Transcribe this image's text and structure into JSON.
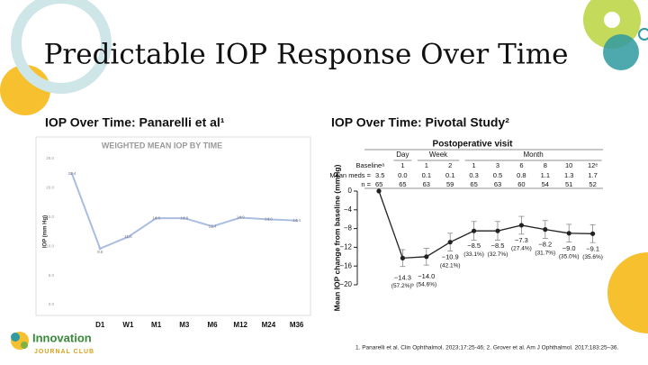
{
  "title": "Predictable IOP Response Over Time",
  "footnote": "1. Panarelli et al. Clin Ophthalmol. 2023;17:25-46; 2. Grover et al. Am J Ophthalmol. 2017;183:25–36.",
  "logo": {
    "name": "Innovation",
    "tagline": "JOURNAL CLUB"
  },
  "chart_data": [
    {
      "type": "line",
      "heading": "IOP Over Time: Panarelli et al¹",
      "title": "WEIGHTED MEAN IOP BY TIME",
      "y_label": "IOP (mm Hg)",
      "categories": [
        null,
        "D1",
        "W1",
        "M1",
        "M3",
        "M6",
        "M12",
        "M24",
        "M36"
      ],
      "values": [
        22.4,
        9.6,
        11.6,
        14.8,
        14.8,
        13.4,
        14.9,
        14.6,
        14.4
      ],
      "color": "#a9bde3",
      "ylim": [
        0,
        25
      ],
      "yticks": [
        {
          "value": 0,
          "label": "0.0"
        },
        {
          "value": 5,
          "label": "5.0"
        },
        {
          "value": 10,
          "label": "10.0"
        },
        {
          "value": 15,
          "label": "15.0"
        },
        {
          "value": 20,
          "label": "20.0"
        },
        {
          "value": 25,
          "label": "25.0"
        }
      ]
    },
    {
      "type": "line",
      "heading": "IOP Over Time: Pivotal Study²",
      "title": "Postoperative visit",
      "y_label": "Mean IOP change from baseline (mmHg)",
      "x_groups": [
        "Day",
        "Week",
        "Month"
      ],
      "categories": [
        "Baselineᵃ",
        "1",
        "1",
        "2",
        "1",
        "3",
        "6",
        "8",
        "10",
        "12ᵉ"
      ],
      "table_rows": [
        {
          "label": "Mean meds =",
          "values": [
            "3.5",
            "0.0",
            "0.1",
            "0.1",
            "0.3",
            "0.5",
            "0.8",
            "1.1",
            "1.3",
            "1.7"
          ]
        },
        {
          "label": "n =",
          "values": [
            65,
            65,
            63,
            59,
            65,
            63,
            60,
            54,
            51,
            52
          ]
        }
      ],
      "values": [
        0,
        -14.3,
        -14.0,
        -10.9,
        -8.5,
        -8.5,
        -7.3,
        -8.2,
        -9.0,
        -9.1
      ],
      "value_labels": [
        null,
        "−14.3",
        "−14.0",
        "−10.9",
        "−8.5",
        "−8.5",
        "−7.3",
        "−8.2",
        "−9.0",
        "−9.1"
      ],
      "percent_labels": [
        null,
        "(57.2%)ᵇ",
        "(54.6%)",
        "(42.1%)",
        "(33.1%)",
        "(32.7%)",
        "(27.4%)",
        "(31.7%)",
        "(35.0%)",
        "(35.6%)"
      ],
      "errors": [
        null,
        1.8,
        1.8,
        1.9,
        2.0,
        2.0,
        1.9,
        1.9,
        1.9,
        1.9
      ],
      "color": "#222222",
      "ylim": [
        -20,
        0
      ],
      "yticks": [
        {
          "value": 0,
          "label": "0"
        },
        {
          "value": -4,
          "label": "−4"
        },
        {
          "value": -8,
          "label": "−8"
        },
        {
          "value": -12,
          "label": "−12"
        },
        {
          "value": -16,
          "label": "−16"
        },
        {
          "value": -20,
          "label": "−20"
        }
      ]
    }
  ]
}
